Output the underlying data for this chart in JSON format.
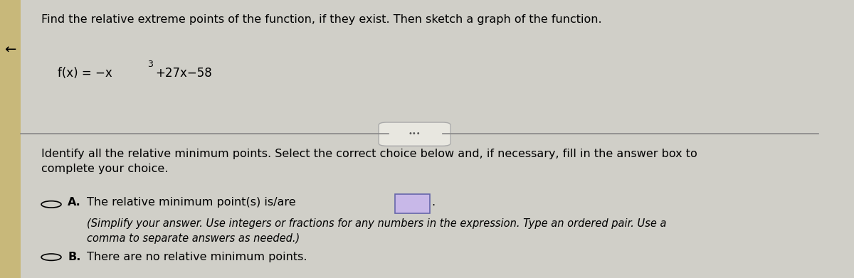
{
  "background_color": "#d0cfc8",
  "left_panel_color": "#c8b87a",
  "main_bg": "#d4d3cc",
  "title_text": "Find the relative extreme points of the function, if they exist. Then sketch a graph of the function.",
  "function_text": "f(x) = -x³ + 27x - 58",
  "instruction_text": "Identify all the relative minimum points. Select the correct choice below and, if necessary, fill in the answer box to\ncomplete your choice.",
  "choice_a_label": "A.",
  "choice_a_text": "The relative minimum point(s) is/are",
  "choice_a_subtext": "(Simplify your answer. Use integers or fractions for any numbers in the expression. Type an ordered pair. Use a\ncomma to separate answers as needed.)",
  "choice_b_label": "B.",
  "choice_b_text": "There are no relative minimum points.",
  "divider_button_text": "•••",
  "arrow_char": "←",
  "title_fontsize": 11.5,
  "function_fontsize": 12,
  "instruction_fontsize": 11.5,
  "choice_fontsize": 11.5,
  "subtext_fontsize": 10.5
}
